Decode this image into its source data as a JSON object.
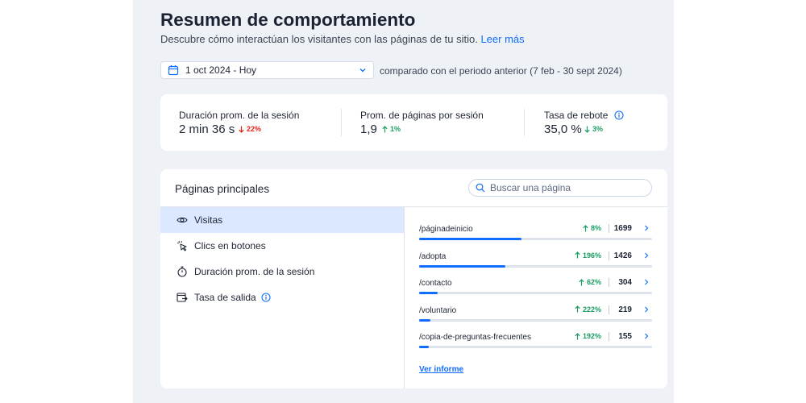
{
  "header": {
    "title": "Resumen de comportamiento",
    "subtitle": "Descubre cómo interactúan los visitantes con las páginas de tu sitio.",
    "learn_more": "Leer más"
  },
  "date_filter": {
    "value": "1 oct 2024 - Hoy",
    "comparison": "comparado con el periodo anterior (7 feb - 30 sept 2024)"
  },
  "stats": [
    {
      "label": "Duración prom. de la sesión",
      "value": "2 min 36 s",
      "trend": "22%",
      "direction": "down",
      "color": "#e62214"
    },
    {
      "label": "Prom. de páginas por sesión",
      "value": "1,9",
      "trend": "1%",
      "direction": "up",
      "color": "#1a9e63"
    },
    {
      "label": "Tasa de rebote",
      "value": "35,0 %",
      "trend": "3%",
      "direction": "down",
      "color": "#1a9e63"
    }
  ],
  "top_pages": {
    "title": "Páginas principales",
    "search_placeholder": "Buscar una página",
    "menu": [
      {
        "label": "Visitas",
        "icon": "eye-icon",
        "active": true
      },
      {
        "label": "Clics en botones",
        "icon": "cursor-click-icon",
        "active": false
      },
      {
        "label": "Duración prom. de la sesión",
        "icon": "stopwatch-icon",
        "active": false
      },
      {
        "label": "Tasa de salida",
        "icon": "exit-icon",
        "active": false,
        "info": true
      }
    ],
    "rows": [
      {
        "page": "/páginadeinicio",
        "change": "8%",
        "count": "1699",
        "share": 0.44
      },
      {
        "page": "/adopta",
        "change": "196%",
        "count": "1426",
        "share": 0.37
      },
      {
        "page": "/contacto",
        "change": "62%",
        "count": "304",
        "share": 0.08
      },
      {
        "page": "/voluntario",
        "change": "222%",
        "count": "219",
        "share": 0.05
      },
      {
        "page": "/copia-de-preguntas-frecuentes",
        "change": "192%",
        "count": "155",
        "share": 0.04
      }
    ],
    "report_link": "Ver informe"
  }
}
